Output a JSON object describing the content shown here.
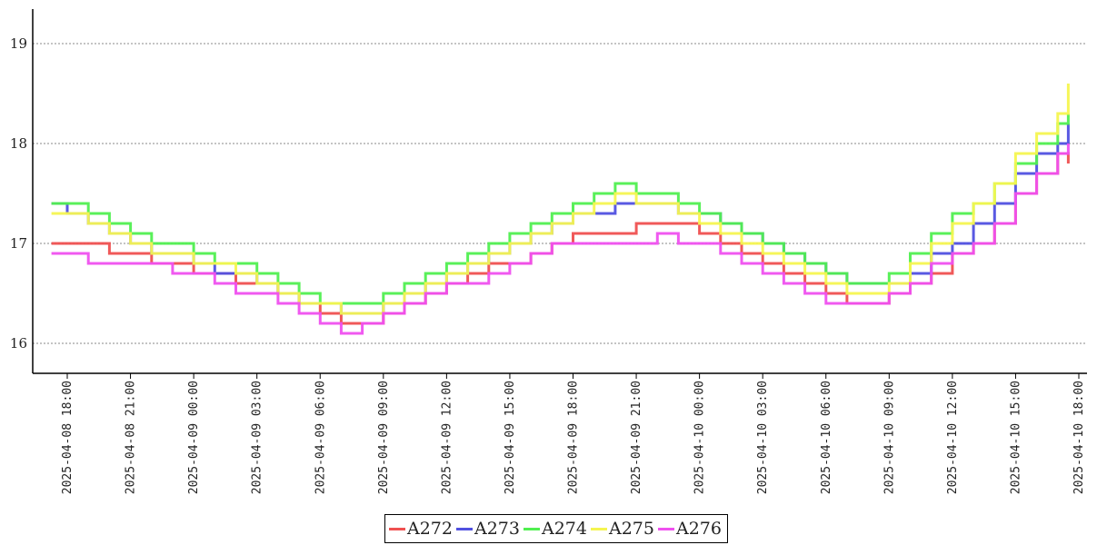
{
  "chart_data": {
    "type": "line",
    "title": "",
    "xlabel": "",
    "ylabel": "",
    "ylim": [
      15.7,
      19.35
    ],
    "grid": "horizontal-dotted",
    "legend_position": "bottom-center",
    "yticks": [
      16,
      17,
      18,
      19
    ],
    "xticks": [
      "2025-04-08 18:00",
      "2025-04-08 21:00",
      "2025-04-09 00:00",
      "2025-04-09 03:00",
      "2025-04-09 06:00",
      "2025-04-09 09:00",
      "2025-04-09 12:00",
      "2025-04-09 15:00",
      "2025-04-09 18:00",
      "2025-04-09 21:00",
      "2025-04-10 00:00",
      "2025-04-10 03:00",
      "2025-04-10 06:00",
      "2025-04-10 09:00",
      "2025-04-10 12:00",
      "2025-04-10 15:00",
      "2025-04-10 18:00"
    ],
    "x": [
      "2025-04-08 17:15",
      "2025-04-08 18:00",
      "2025-04-08 19:00",
      "2025-04-08 20:00",
      "2025-04-08 21:00",
      "2025-04-08 22:00",
      "2025-04-08 23:00",
      "2025-04-09 00:00",
      "2025-04-09 01:00",
      "2025-04-09 02:00",
      "2025-04-09 03:00",
      "2025-04-09 04:00",
      "2025-04-09 05:00",
      "2025-04-09 06:00",
      "2025-04-09 07:00",
      "2025-04-09 08:00",
      "2025-04-09 09:00",
      "2025-04-09 10:00",
      "2025-04-09 11:00",
      "2025-04-09 12:00",
      "2025-04-09 13:00",
      "2025-04-09 14:00",
      "2025-04-09 15:00",
      "2025-04-09 16:00",
      "2025-04-09 17:00",
      "2025-04-09 18:00",
      "2025-04-09 19:00",
      "2025-04-09 20:00",
      "2025-04-09 21:00",
      "2025-04-09 22:00",
      "2025-04-09 23:00",
      "2025-04-10 00:00",
      "2025-04-10 01:00",
      "2025-04-10 02:00",
      "2025-04-10 03:00",
      "2025-04-10 04:00",
      "2025-04-10 05:00",
      "2025-04-10 06:00",
      "2025-04-10 07:00",
      "2025-04-10 08:00",
      "2025-04-10 09:00",
      "2025-04-10 10:00",
      "2025-04-10 11:00",
      "2025-04-10 12:00",
      "2025-04-10 13:00",
      "2025-04-10 14:00",
      "2025-04-10 15:00",
      "2025-04-10 16:00",
      "2025-04-10 17:00",
      "2025-04-10 17:30"
    ],
    "series": [
      {
        "name": "A272",
        "color": "#ef5050",
        "values": [
          17.0,
          17.0,
          17.0,
          16.9,
          16.9,
          16.8,
          16.8,
          16.7,
          16.7,
          16.6,
          16.6,
          16.5,
          16.4,
          16.3,
          16.2,
          16.2,
          16.3,
          16.4,
          16.5,
          16.6,
          16.7,
          16.8,
          16.8,
          16.9,
          17.0,
          17.1,
          17.1,
          17.1,
          17.2,
          17.2,
          17.2,
          17.1,
          17.0,
          16.9,
          16.8,
          16.7,
          16.6,
          16.5,
          16.4,
          16.4,
          16.5,
          16.6,
          16.7,
          16.9,
          17.0,
          17.2,
          17.5,
          17.7,
          17.9,
          17.8
        ]
      },
      {
        "name": "A273",
        "color": "#5050e0",
        "values": [
          17.4,
          17.3,
          17.2,
          17.1,
          17.0,
          16.9,
          16.9,
          16.8,
          16.7,
          16.7,
          16.6,
          16.5,
          16.4,
          16.4,
          16.3,
          16.3,
          16.4,
          16.5,
          16.6,
          16.7,
          16.8,
          16.9,
          17.0,
          17.1,
          17.2,
          17.3,
          17.3,
          17.4,
          17.4,
          17.4,
          17.3,
          17.3,
          17.2,
          17.1,
          17.0,
          16.9,
          16.8,
          16.7,
          16.6,
          16.6,
          16.6,
          16.7,
          16.9,
          17.0,
          17.2,
          17.4,
          17.7,
          17.9,
          18.0,
          18.2
        ]
      },
      {
        "name": "A274",
        "color": "#50ef50",
        "values": [
          17.4,
          17.4,
          17.3,
          17.2,
          17.1,
          17.0,
          17.0,
          16.9,
          16.8,
          16.8,
          16.7,
          16.6,
          16.5,
          16.4,
          16.4,
          16.4,
          16.5,
          16.6,
          16.7,
          16.8,
          16.9,
          17.0,
          17.1,
          17.2,
          17.3,
          17.4,
          17.5,
          17.6,
          17.5,
          17.5,
          17.4,
          17.3,
          17.2,
          17.1,
          17.0,
          16.9,
          16.8,
          16.7,
          16.6,
          16.6,
          16.7,
          16.9,
          17.1,
          17.3,
          17.4,
          17.6,
          17.8,
          18.0,
          18.2,
          18.3
        ]
      },
      {
        "name": "A275",
        "color": "#f5f550",
        "values": [
          17.3,
          17.3,
          17.2,
          17.1,
          17.0,
          16.9,
          16.9,
          16.8,
          16.8,
          16.7,
          16.6,
          16.5,
          16.4,
          16.4,
          16.3,
          16.3,
          16.4,
          16.5,
          16.6,
          16.7,
          16.8,
          16.9,
          17.0,
          17.1,
          17.2,
          17.3,
          17.4,
          17.5,
          17.4,
          17.4,
          17.3,
          17.2,
          17.1,
          17.0,
          16.9,
          16.8,
          16.7,
          16.6,
          16.5,
          16.5,
          16.6,
          16.8,
          17.0,
          17.2,
          17.4,
          17.6,
          17.9,
          18.1,
          18.3,
          18.6
        ]
      },
      {
        "name": "A276",
        "color": "#ef50ef",
        "values": [
          16.9,
          16.9,
          16.8,
          16.8,
          16.8,
          16.8,
          16.7,
          16.7,
          16.6,
          16.5,
          16.5,
          16.4,
          16.3,
          16.2,
          16.1,
          16.2,
          16.3,
          16.4,
          16.5,
          16.6,
          16.6,
          16.7,
          16.8,
          16.9,
          17.0,
          17.0,
          17.0,
          17.0,
          17.0,
          17.1,
          17.0,
          17.0,
          16.9,
          16.8,
          16.7,
          16.6,
          16.5,
          16.4,
          16.4,
          16.4,
          16.5,
          16.6,
          16.8,
          16.9,
          17.0,
          17.2,
          17.5,
          17.7,
          17.9,
          18.0
        ]
      }
    ]
  }
}
